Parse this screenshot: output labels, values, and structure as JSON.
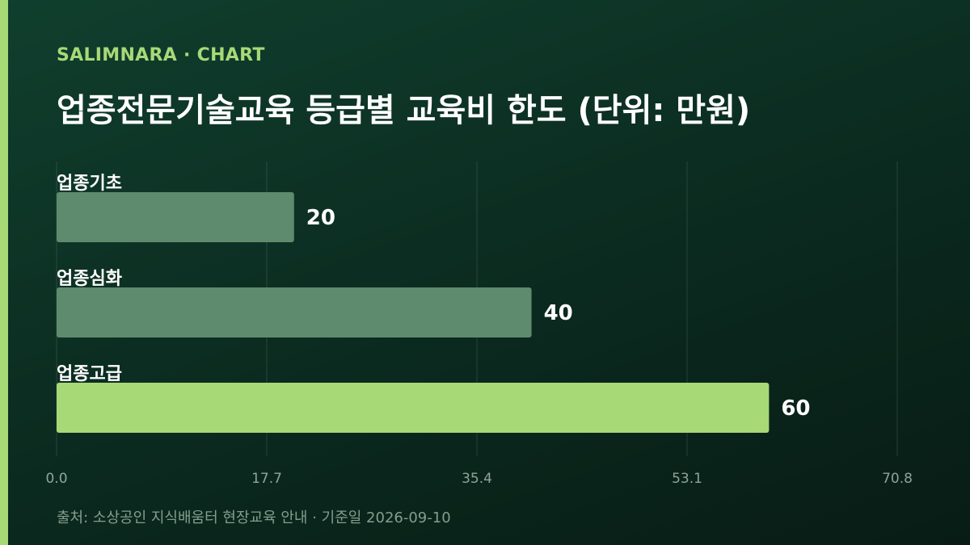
{
  "header": {
    "brand": "SALIMNARA · CHART",
    "title": "업종전문기술교육 등급별 교육비 한도 (단위: 만원)"
  },
  "footer": {
    "source": "출처: 소상공인 지식배움터 현장교육 안내 · 기준일 2026-09-10"
  },
  "colors": {
    "accent": "#a8d977",
    "bar_default": "#5e8b6d",
    "bar_highlight": "#a8d977"
  },
  "chart_data": {
    "type": "bar",
    "orientation": "horizontal",
    "title": "업종전문기술교육 등급별 교육비 한도 (단위: 만원)",
    "categories": [
      "업종기초",
      "업종심화",
      "업종고급"
    ],
    "values": [
      20,
      40,
      60
    ],
    "xlim": [
      0,
      70.8
    ],
    "xticks": [
      "0.0",
      "17.7",
      "35.4",
      "53.1",
      "70.8"
    ],
    "highlight_index": 2,
    "grid": true,
    "data_labels": true
  }
}
